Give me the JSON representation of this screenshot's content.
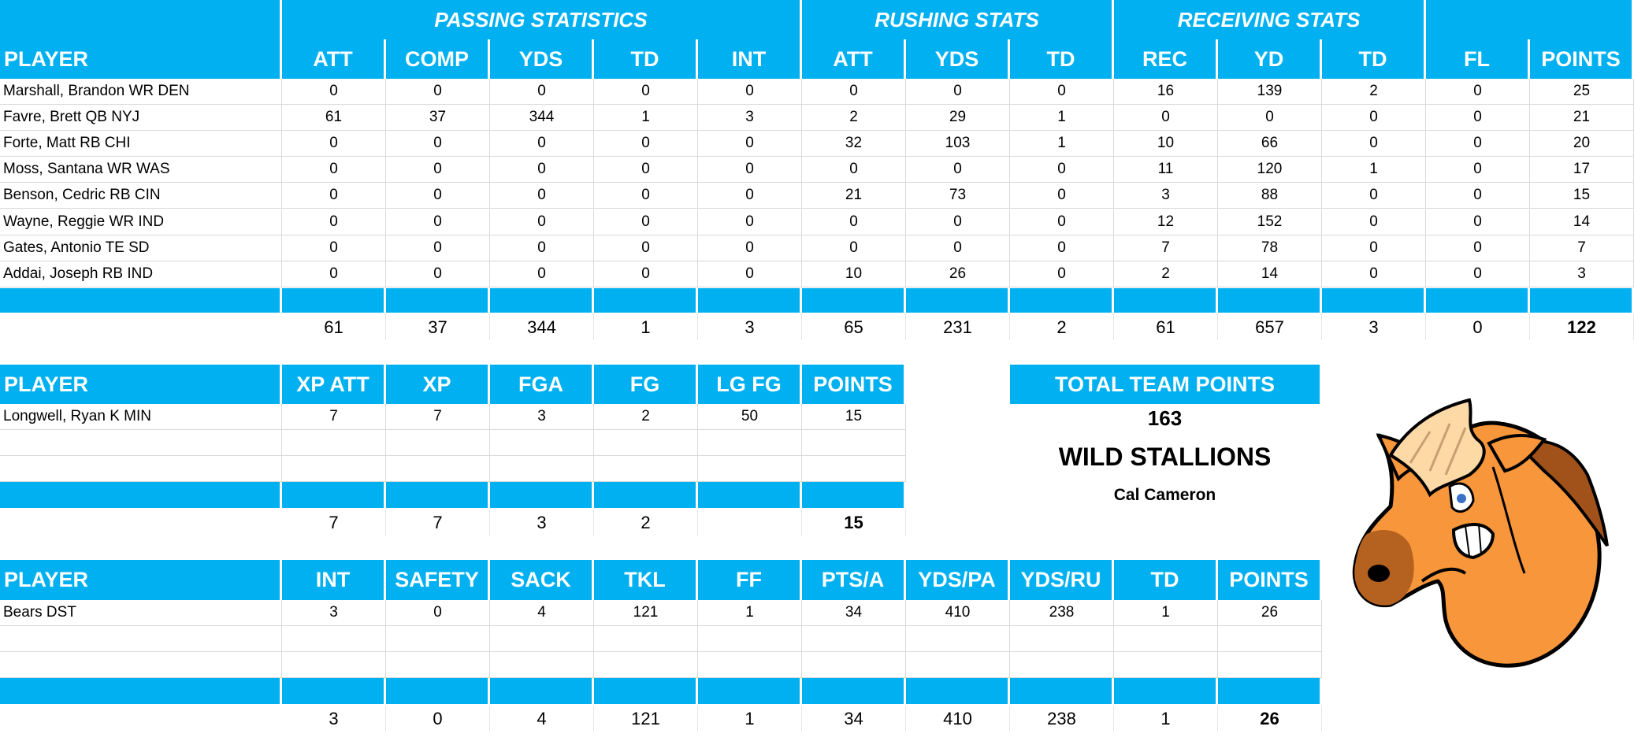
{
  "colors": {
    "header_blue": "#00B0F0",
    "header_text": "#FFFFFF",
    "grid": "#D9D9D9"
  },
  "offense": {
    "group_headers": [
      {
        "label": "PASSING STATISTICS",
        "span": 5
      },
      {
        "label": "RUSHING STATS",
        "span": 3
      },
      {
        "label": "RECEIVING STATS",
        "span": 3
      },
      {
        "label": "",
        "span": 2
      }
    ],
    "columns": [
      "PLAYER",
      "ATT",
      "COMP",
      "YDS",
      "TD",
      "INT",
      "ATT",
      "YDS",
      "TD",
      "REC",
      "YD",
      "TD",
      "FL",
      "POINTS"
    ],
    "rows": [
      [
        "Marshall, Brandon WR DEN",
        "0",
        "0",
        "0",
        "0",
        "0",
        "0",
        "0",
        "0",
        "16",
        "139",
        "2",
        "0",
        "25"
      ],
      [
        "Favre, Brett QB NYJ",
        "61",
        "37",
        "344",
        "1",
        "3",
        "2",
        "29",
        "1",
        "0",
        "0",
        "0",
        "0",
        "21"
      ],
      [
        "Forte, Matt RB CHI",
        "0",
        "0",
        "0",
        "0",
        "0",
        "32",
        "103",
        "1",
        "10",
        "66",
        "0",
        "0",
        "20"
      ],
      [
        "Moss, Santana WR WAS",
        "0",
        "0",
        "0",
        "0",
        "0",
        "0",
        "0",
        "0",
        "11",
        "120",
        "1",
        "0",
        "17"
      ],
      [
        "Benson, Cedric RB CIN",
        "0",
        "0",
        "0",
        "0",
        "0",
        "21",
        "73",
        "0",
        "3",
        "88",
        "0",
        "0",
        "15"
      ],
      [
        "Wayne, Reggie WR IND",
        "0",
        "0",
        "0",
        "0",
        "0",
        "0",
        "0",
        "0",
        "12",
        "152",
        "0",
        "0",
        "14"
      ],
      [
        "Gates, Antonio TE SD",
        "0",
        "0",
        "0",
        "0",
        "0",
        "0",
        "0",
        "0",
        "7",
        "78",
        "0",
        "0",
        "7"
      ],
      [
        "Addai, Joseph RB IND",
        "0",
        "0",
        "0",
        "0",
        "0",
        "10",
        "26",
        "0",
        "2",
        "14",
        "0",
        "0",
        "3"
      ]
    ],
    "totals": [
      "",
      "61",
      "37",
      "344",
      "1",
      "3",
      "65",
      "231",
      "2",
      "61",
      "657",
      "3",
      "0",
      "122"
    ]
  },
  "kicker": {
    "columns": [
      "PLAYER",
      "XP ATT",
      "XP",
      "FGA",
      "FG",
      "LG FG",
      "POINTS"
    ],
    "rows": [
      [
        "Longwell, Ryan K MIN",
        "7",
        "7",
        "3",
        "2",
        "50",
        "15"
      ],
      [
        "",
        "",
        "",
        "",
        "",
        "",
        ""
      ],
      [
        "",
        "",
        "",
        "",
        "",
        "",
        ""
      ]
    ],
    "totals": [
      "",
      "7",
      "7",
      "3",
      "2",
      "",
      "15"
    ]
  },
  "defense": {
    "columns": [
      "PLAYER",
      "INT",
      "SAFETY",
      "SACK",
      "TKL",
      "FF",
      "PTS/A",
      "YDS/PA",
      "YDS/RU",
      "TD",
      "POINTS"
    ],
    "rows": [
      [
        "Bears DST",
        "3",
        "0",
        "4",
        "121",
        "1",
        "34",
        "410",
        "238",
        "1",
        "26"
      ],
      [
        "",
        "",
        "",
        "",
        "",
        "",
        "",
        "",
        "",
        "",
        ""
      ],
      [
        "",
        "",
        "",
        "",
        "",
        "",
        "",
        "",
        "",
        "",
        ""
      ]
    ],
    "totals": [
      "",
      "3",
      "0",
      "4",
      "121",
      "1",
      "34",
      "410",
      "238",
      "1",
      "26"
    ]
  },
  "team": {
    "total_label": "TOTAL TEAM POINTS",
    "total_points": "163",
    "name": "WILD STALLIONS",
    "owner": "Cal Cameron",
    "logo_icon": "stallion-head-icon"
  }
}
